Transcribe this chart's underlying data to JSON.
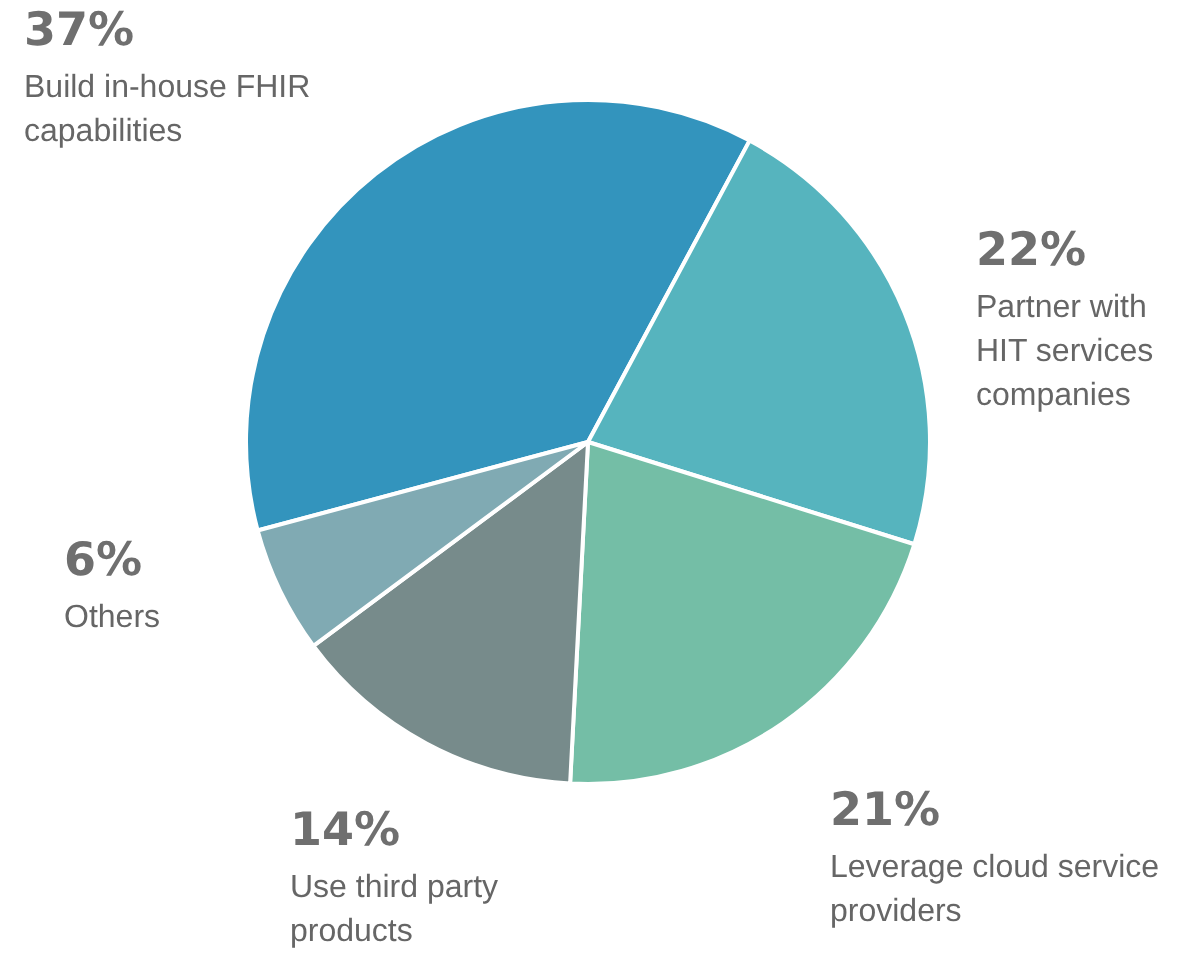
{
  "chart_data": {
    "type": "pie",
    "categories": [
      "Build in-house FHIR capabilities",
      "Partner with HIT services companies",
      "Leverage cloud service providers",
      "Use third party products",
      "Others"
    ],
    "values": [
      37,
      22,
      21,
      14,
      6
    ],
    "value_labels": [
      "37%",
      "22%",
      "21%",
      "14%",
      "6%"
    ],
    "colors": [
      "#3394bd",
      "#56b4be",
      "#74bea6",
      "#778b8b",
      "#80aab3"
    ],
    "legend": false
  }
}
